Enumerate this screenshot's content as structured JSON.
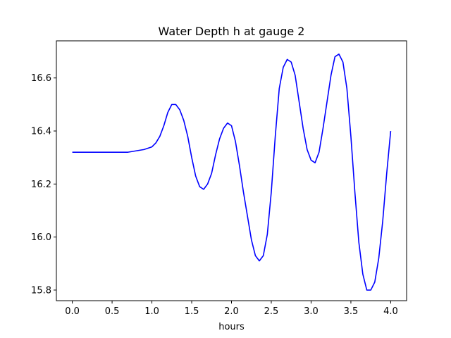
{
  "chart_data": {
    "type": "line",
    "title": "Water Depth h at gauge 2",
    "xlabel": "hours",
    "ylabel": "",
    "xlim": [
      -0.2,
      4.2
    ],
    "ylim": [
      15.76,
      16.74
    ],
    "xticks": [
      "0.0",
      "0.5",
      "1.0",
      "1.5",
      "2.0",
      "2.5",
      "3.0",
      "3.5",
      "4.0"
    ],
    "yticks": [
      "15.8",
      "16.0",
      "16.2",
      "16.4",
      "16.6"
    ],
    "grid": false,
    "legend": "none",
    "series": [
      {
        "color": "#0000ff",
        "points": [
          [
            0.0,
            16.32
          ],
          [
            0.3,
            16.32
          ],
          [
            0.6,
            16.32
          ],
          [
            0.7,
            16.32
          ],
          [
            0.8,
            16.325
          ],
          [
            0.9,
            16.33
          ],
          [
            1.0,
            16.34
          ],
          [
            1.05,
            16.355
          ],
          [
            1.1,
            16.38
          ],
          [
            1.15,
            16.42
          ],
          [
            1.2,
            16.47
          ],
          [
            1.25,
            16.5
          ],
          [
            1.3,
            16.5
          ],
          [
            1.35,
            16.48
          ],
          [
            1.4,
            16.44
          ],
          [
            1.45,
            16.38
          ],
          [
            1.5,
            16.3
          ],
          [
            1.55,
            16.23
          ],
          [
            1.6,
            16.19
          ],
          [
            1.65,
            16.18
          ],
          [
            1.7,
            16.2
          ],
          [
            1.75,
            16.24
          ],
          [
            1.8,
            16.31
          ],
          [
            1.85,
            16.37
          ],
          [
            1.9,
            16.41
          ],
          [
            1.95,
            16.43
          ],
          [
            2.0,
            16.42
          ],
          [
            2.05,
            16.36
          ],
          [
            2.1,
            16.27
          ],
          [
            2.15,
            16.17
          ],
          [
            2.2,
            16.08
          ],
          [
            2.25,
            15.99
          ],
          [
            2.3,
            15.93
          ],
          [
            2.35,
            15.91
          ],
          [
            2.4,
            15.93
          ],
          [
            2.45,
            16.01
          ],
          [
            2.5,
            16.17
          ],
          [
            2.55,
            16.38
          ],
          [
            2.6,
            16.56
          ],
          [
            2.65,
            16.64
          ],
          [
            2.7,
            16.67
          ],
          [
            2.75,
            16.66
          ],
          [
            2.8,
            16.61
          ],
          [
            2.85,
            16.51
          ],
          [
            2.9,
            16.41
          ],
          [
            2.95,
            16.33
          ],
          [
            3.0,
            16.29
          ],
          [
            3.05,
            16.28
          ],
          [
            3.1,
            16.32
          ],
          [
            3.15,
            16.41
          ],
          [
            3.2,
            16.51
          ],
          [
            3.25,
            16.61
          ],
          [
            3.3,
            16.68
          ],
          [
            3.35,
            16.69
          ],
          [
            3.4,
            16.66
          ],
          [
            3.45,
            16.56
          ],
          [
            3.5,
            16.38
          ],
          [
            3.55,
            16.17
          ],
          [
            3.6,
            15.98
          ],
          [
            3.65,
            15.86
          ],
          [
            3.7,
            15.8
          ],
          [
            3.75,
            15.8
          ],
          [
            3.8,
            15.83
          ],
          [
            3.85,
            15.92
          ],
          [
            3.9,
            16.06
          ],
          [
            3.95,
            16.24
          ],
          [
            4.0,
            16.4
          ]
        ]
      }
    ]
  }
}
